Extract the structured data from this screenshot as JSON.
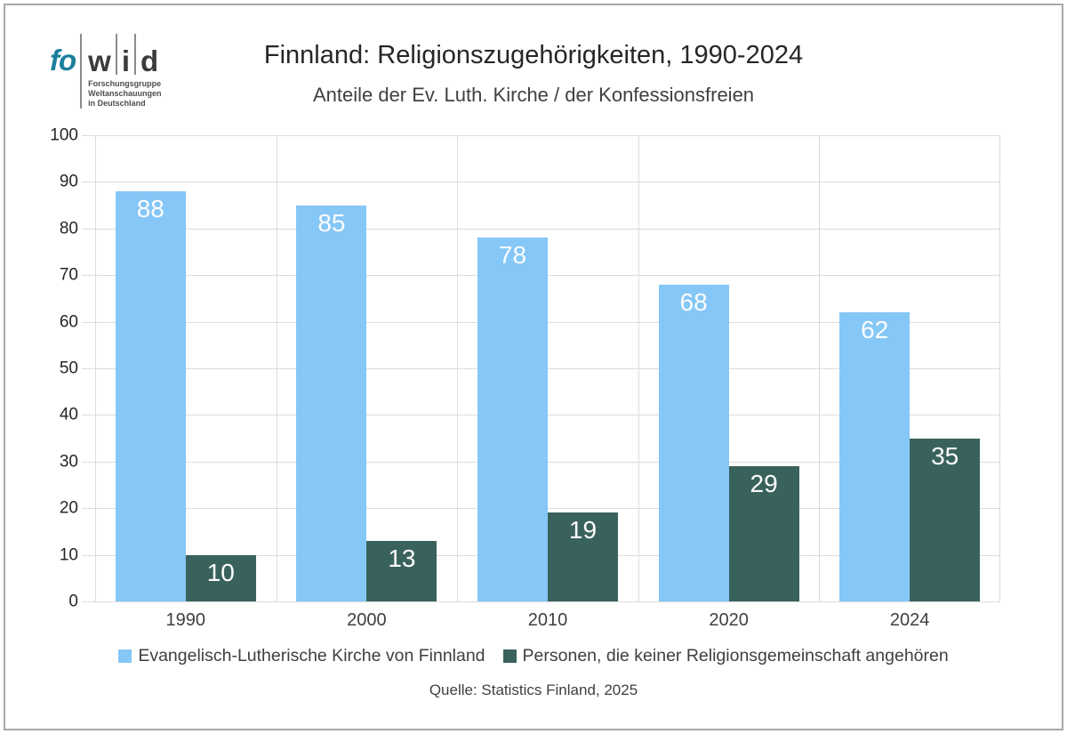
{
  "page": {
    "background": "#FFFFFF",
    "frame_border_color": "#A9A9A9"
  },
  "logo": {
    "brand_prefix": "fo",
    "brand_prefix_color": "#1A7F9C",
    "brand_letters": [
      "w",
      "i",
      "d"
    ],
    "brand_letters_color": "#3B3B3D",
    "separator_color": "#8C8C8C",
    "tagline_lines": [
      "Forschungsgruppe",
      "Weltanschauungen",
      "in Deutschland"
    ]
  },
  "header": {
    "title": "Finnland: Religionszugehörigkeiten, 1990-2024",
    "subtitle": "Anteile der Ev. Luth. Kirche / der Konfessionsfreien"
  },
  "footer": {
    "source": "Quelle: Statistics Finland, 2025"
  },
  "chart_data": {
    "type": "bar",
    "title": "Finnland: Religionszugehörigkeiten, 1990-2024",
    "subtitle": "Anteile der Ev. Luth. Kirche / der Konfessionsfreien",
    "categories": [
      "1990",
      "2000",
      "2010",
      "2020",
      "2024"
    ],
    "series": [
      {
        "name": "Evangelisch-Lutherische Kirche von Finnland",
        "color": "#85C7F6",
        "values": [
          88,
          85,
          78,
          68,
          62
        ]
      },
      {
        "name": "Personen, die keiner Religionsgemeinschaft angehören",
        "color": "#3A625D",
        "values": [
          10,
          13,
          19,
          29,
          35
        ]
      }
    ],
    "ylim": [
      0,
      100
    ],
    "yticks": [
      0,
      10,
      20,
      30,
      40,
      50,
      60,
      70,
      80,
      90,
      100
    ],
    "grid": true,
    "value_labels": "inside-top",
    "value_label_color": "#FDFDFD",
    "gridline_color": "#DCDCDC",
    "legend_position": "bottom",
    "source": "Quelle: Statistics Finland, 2025"
  }
}
